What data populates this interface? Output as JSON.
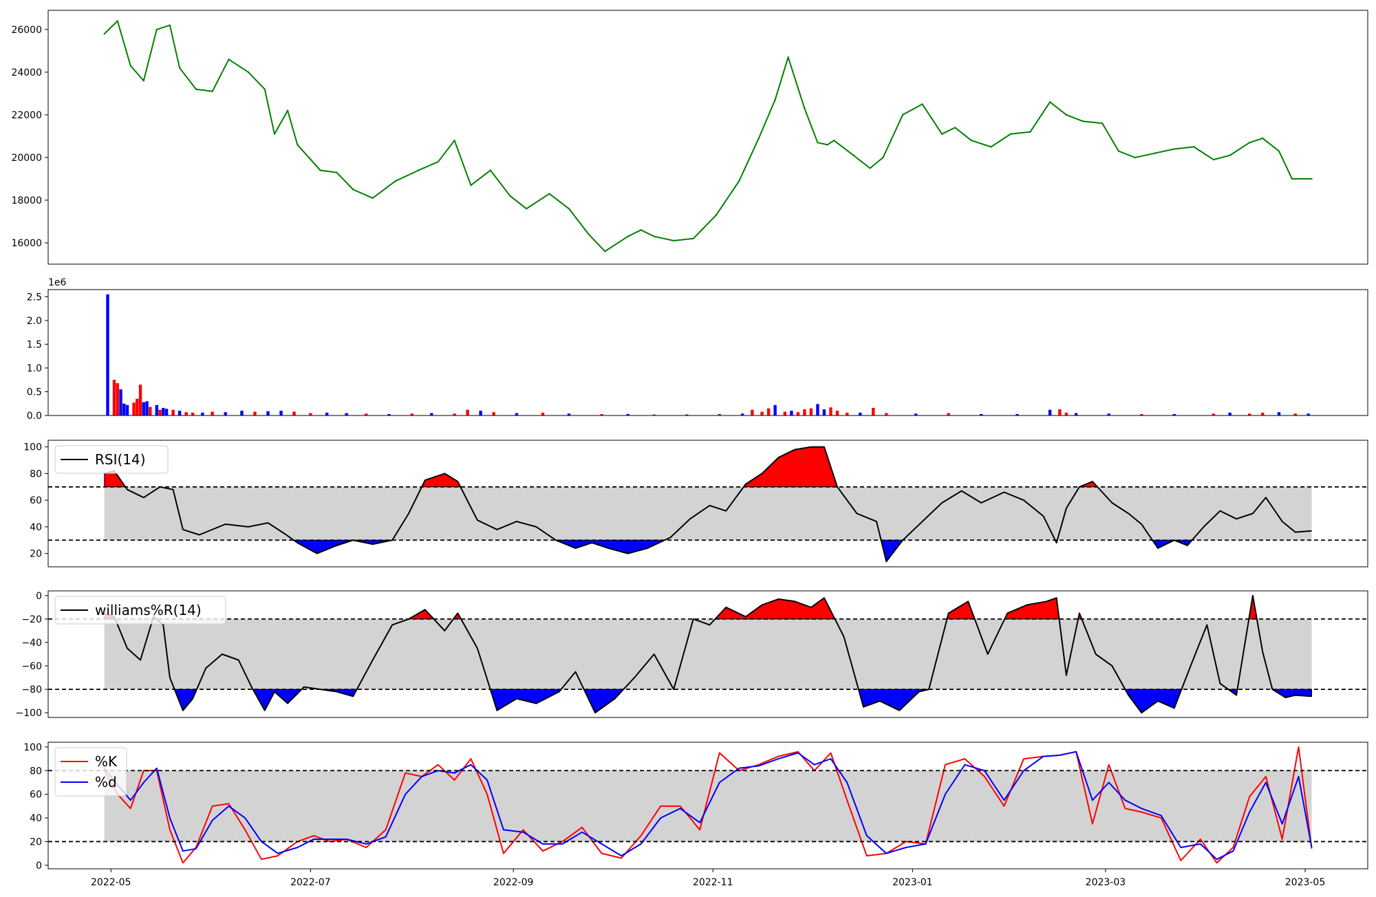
{
  "colors": {
    "price_line": "#008000",
    "volume_up": "#ff0000",
    "volume_down": "#0000ff",
    "overbought_fill": "#ff0000",
    "oversold_fill": "#0000ff",
    "band_fill": "#d3d3d3",
    "indicator_line": "#000000",
    "k_line": "#ff0000",
    "d_line": "#0000ff"
  },
  "chart_data": [
    {
      "type": "line",
      "name": "price",
      "ylim": [
        15000,
        26900
      ],
      "yticks": [
        16000,
        18000,
        20000,
        22000,
        24000,
        26000
      ],
      "x": [
        "2022-04-29",
        "2022-05-03",
        "2022-05-07",
        "2022-05-11",
        "2022-05-15",
        "2022-05-19",
        "2022-05-22",
        "2022-05-27",
        "2022-06-01",
        "2022-06-06",
        "2022-06-12",
        "2022-06-17",
        "2022-06-20",
        "2022-06-24",
        "2022-06-27",
        "2022-07-04",
        "2022-07-09",
        "2022-07-14",
        "2022-07-20",
        "2022-07-27",
        "2022-08-03",
        "2022-08-09",
        "2022-08-14",
        "2022-08-19",
        "2022-08-25",
        "2022-08-31",
        "2022-09-05",
        "2022-09-12",
        "2022-09-18",
        "2022-09-24",
        "2022-09-29",
        "2022-10-06",
        "2022-10-10",
        "2022-10-14",
        "2022-10-20",
        "2022-10-26",
        "2022-11-02",
        "2022-11-09",
        "2022-11-15",
        "2022-11-20",
        "2022-11-24",
        "2022-11-29",
        "2022-12-03",
        "2022-12-06",
        "2022-12-08",
        "2022-12-14",
        "2022-12-19",
        "2022-12-23",
        "2022-12-29",
        "2023-01-04",
        "2023-01-10",
        "2023-01-14",
        "2023-01-19",
        "2023-01-25",
        "2023-01-31",
        "2023-02-06",
        "2023-02-12",
        "2023-02-17",
        "2023-02-22",
        "2023-02-28",
        "2023-03-05",
        "2023-03-10",
        "2023-03-16",
        "2023-03-22",
        "2023-03-28",
        "2023-04-03",
        "2023-04-08",
        "2023-04-14",
        "2023-04-18",
        "2023-04-23",
        "2023-04-27",
        "2023-05-03"
      ],
      "values": [
        25800,
        26400,
        24300,
        23600,
        26000,
        26200,
        24200,
        23200,
        23100,
        24600,
        24000,
        23200,
        21100,
        22200,
        20600,
        19400,
        19300,
        18500,
        18100,
        18900,
        19400,
        19800,
        20800,
        18700,
        19400,
        18200,
        17600,
        18300,
        17600,
        16400,
        15600,
        16300,
        16600,
        16300,
        16100,
        16200,
        17300,
        18900,
        20900,
        22700,
        24700,
        22300,
        20700,
        20600,
        20800,
        20100,
        19500,
        20000,
        22000,
        22500,
        21100,
        21400,
        20800,
        20500,
        21100,
        21200,
        22600,
        22000,
        21700,
        21600,
        20300,
        20000,
        20200,
        20400,
        20500,
        19900,
        20100,
        20700,
        20900,
        20300,
        19000,
        19000
      ]
    },
    {
      "type": "bar",
      "name": "volume",
      "exponent_label": "1e6",
      "ylim": [
        0,
        2.65
      ],
      "yticks": [
        0.0,
        0.5,
        1.0,
        1.5,
        2.0,
        2.5
      ],
      "x": [
        "2022-04-30",
        "2022-05-02",
        "2022-05-03",
        "2022-05-04",
        "2022-05-05",
        "2022-05-06",
        "2022-05-08",
        "2022-05-09",
        "2022-05-10",
        "2022-05-11",
        "2022-05-12",
        "2022-05-13",
        "2022-05-15",
        "2022-05-16",
        "2022-05-17",
        "2022-05-18",
        "2022-05-20",
        "2022-05-22",
        "2022-05-24",
        "2022-05-26",
        "2022-05-29",
        "2022-06-01",
        "2022-06-05",
        "2022-06-10",
        "2022-06-14",
        "2022-06-18",
        "2022-06-22",
        "2022-06-26",
        "2022-07-01",
        "2022-07-06",
        "2022-07-12",
        "2022-07-18",
        "2022-07-25",
        "2022-08-01",
        "2022-08-07",
        "2022-08-14",
        "2022-08-18",
        "2022-08-22",
        "2022-08-26",
        "2022-09-02",
        "2022-09-10",
        "2022-09-18",
        "2022-09-28",
        "2022-10-06",
        "2022-10-14",
        "2022-10-24",
        "2022-11-03",
        "2022-11-10",
        "2022-11-13",
        "2022-11-16",
        "2022-11-18",
        "2022-11-20",
        "2022-11-23",
        "2022-11-25",
        "2022-11-27",
        "2022-11-29",
        "2022-12-01",
        "2022-12-03",
        "2022-12-05",
        "2022-12-07",
        "2022-12-09",
        "2022-12-12",
        "2022-12-16",
        "2022-12-20",
        "2022-12-24",
        "2023-01-02",
        "2023-01-12",
        "2023-01-22",
        "2023-02-02",
        "2023-02-12",
        "2023-02-15",
        "2023-02-17",
        "2023-02-20",
        "2023-03-02",
        "2023-03-12",
        "2023-03-22",
        "2023-04-03",
        "2023-04-08",
        "2023-04-14",
        "2023-04-18",
        "2023-04-23",
        "2023-04-28",
        "2023-05-02"
      ],
      "values": [
        2.55,
        0.75,
        0.68,
        0.55,
        0.25,
        0.22,
        0.27,
        0.35,
        0.65,
        0.28,
        0.3,
        0.18,
        0.22,
        0.12,
        0.16,
        0.14,
        0.12,
        0.1,
        0.07,
        0.06,
        0.06,
        0.08,
        0.07,
        0.1,
        0.08,
        0.09,
        0.1,
        0.08,
        0.05,
        0.06,
        0.05,
        0.04,
        0.03,
        0.04,
        0.05,
        0.04,
        0.12,
        0.1,
        0.07,
        0.05,
        0.06,
        0.04,
        0.03,
        0.03,
        0.02,
        0.02,
        0.03,
        0.04,
        0.12,
        0.08,
        0.15,
        0.22,
        0.08,
        0.1,
        0.07,
        0.13,
        0.15,
        0.24,
        0.13,
        0.17,
        0.1,
        0.06,
        0.06,
        0.16,
        0.05,
        0.04,
        0.05,
        0.03,
        0.03,
        0.12,
        0.13,
        0.06,
        0.05,
        0.04,
        0.03,
        0.03,
        0.04,
        0.06,
        0.04,
        0.06,
        0.07,
        0.04,
        0.04
      ],
      "direction": [
        "down",
        "up",
        "up",
        "down",
        "down",
        "down",
        "up",
        "up",
        "up",
        "down",
        "down",
        "up",
        "down",
        "up",
        "down",
        "down",
        "up",
        "down",
        "up",
        "up",
        "down",
        "up",
        "down",
        "down",
        "up",
        "down",
        "down",
        "up",
        "up",
        "down",
        "down",
        "up",
        "down",
        "up",
        "down",
        "up",
        "up",
        "down",
        "up",
        "down",
        "up",
        "down",
        "up",
        "down",
        "up",
        "down",
        "up",
        "down",
        "up",
        "up",
        "up",
        "down",
        "up",
        "down",
        "up",
        "up",
        "up",
        "down",
        "down",
        "up",
        "up",
        "up",
        "down",
        "up",
        "up",
        "down",
        "up",
        "down",
        "down",
        "down",
        "up",
        "up",
        "down",
        "down",
        "up",
        "down",
        "up",
        "down",
        "up",
        "up",
        "down",
        "up",
        "down"
      ]
    },
    {
      "type": "line",
      "name": "rsi",
      "legend": [
        "RSI(14)"
      ],
      "ylim": [
        10,
        105
      ],
      "yticks": [
        20,
        40,
        60,
        80,
        100
      ],
      "thresholds": [
        70,
        30
      ],
      "x": [
        "2022-04-29",
        "2022-05-02",
        "2022-05-06",
        "2022-05-11",
        "2022-05-16",
        "2022-05-20",
        "2022-05-23",
        "2022-05-28",
        "2022-06-05",
        "2022-06-12",
        "2022-06-18",
        "2022-06-23",
        "2022-06-27",
        "2022-07-03",
        "2022-07-09",
        "2022-07-14",
        "2022-07-20",
        "2022-07-26",
        "2022-07-31",
        "2022-08-05",
        "2022-08-11",
        "2022-08-15",
        "2022-08-21",
        "2022-08-27",
        "2022-09-02",
        "2022-09-08",
        "2022-09-14",
        "2022-09-20",
        "2022-09-25",
        "2022-09-30",
        "2022-10-06",
        "2022-10-12",
        "2022-10-19",
        "2022-10-25",
        "2022-10-31",
        "2022-11-05",
        "2022-11-11",
        "2022-11-16",
        "2022-11-21",
        "2022-11-26",
        "2022-12-01",
        "2022-12-05",
        "2022-12-09",
        "2022-12-15",
        "2022-12-21",
        "2022-12-24",
        "2022-12-29",
        "2023-01-04",
        "2023-01-10",
        "2023-01-16",
        "2023-01-22",
        "2023-01-29",
        "2023-02-04",
        "2023-02-10",
        "2023-02-14",
        "2023-02-17",
        "2023-02-21",
        "2023-02-25",
        "2023-03-03",
        "2023-03-08",
        "2023-03-12",
        "2023-03-17",
        "2023-03-22",
        "2023-03-26",
        "2023-03-31",
        "2023-04-05",
        "2023-04-10",
        "2023-04-15",
        "2023-04-19",
        "2023-04-24",
        "2023-04-28",
        "2023-05-03"
      ],
      "values": [
        80,
        82,
        68,
        62,
        70,
        68,
        38,
        34,
        42,
        40,
        43,
        35,
        28,
        20,
        26,
        30,
        27,
        30,
        50,
        75,
        80,
        74,
        45,
        38,
        44,
        40,
        30,
        24,
        28,
        24,
        20,
        24,
        32,
        46,
        56,
        52,
        72,
        80,
        92,
        98,
        100,
        100,
        70,
        50,
        44,
        14,
        30,
        44,
        58,
        67,
        58,
        66,
        60,
        48,
        28,
        54,
        70,
        74,
        58,
        50,
        42,
        24,
        30,
        26,
        40,
        52,
        46,
        50,
        62,
        44,
        36,
        37
      ]
    },
    {
      "type": "line",
      "name": "williams_r",
      "legend": [
        "williams%R(14)"
      ],
      "ylim": [
        -104,
        4
      ],
      "yticks": [
        -100,
        -80,
        -60,
        -40,
        -20,
        0
      ],
      "thresholds": [
        -20,
        -80
      ],
      "x": [
        "2022-04-29",
        "2022-05-02",
        "2022-05-06",
        "2022-05-10",
        "2022-05-14",
        "2022-05-17",
        "2022-05-19",
        "2022-05-23",
        "2022-05-26",
        "2022-05-30",
        "2022-06-04",
        "2022-06-09",
        "2022-06-13",
        "2022-06-17",
        "2022-06-20",
        "2022-06-24",
        "2022-06-29",
        "2022-07-04",
        "2022-07-09",
        "2022-07-14",
        "2022-07-20",
        "2022-07-26",
        "2022-07-31",
        "2022-08-05",
        "2022-08-11",
        "2022-08-15",
        "2022-08-21",
        "2022-08-27",
        "2022-09-02",
        "2022-09-08",
        "2022-09-15",
        "2022-09-20",
        "2022-09-26",
        "2022-10-02",
        "2022-10-08",
        "2022-10-14",
        "2022-10-20",
        "2022-10-26",
        "2022-10-31",
        "2022-11-05",
        "2022-11-11",
        "2022-11-16",
        "2022-11-21",
        "2022-11-26",
        "2022-12-01",
        "2022-12-05",
        "2022-12-11",
        "2022-12-17",
        "2022-12-22",
        "2022-12-28",
        "2023-01-03",
        "2023-01-06",
        "2023-01-12",
        "2023-01-18",
        "2023-01-24",
        "2023-01-30",
        "2023-02-05",
        "2023-02-11",
        "2023-02-14",
        "2023-02-17",
        "2023-02-21",
        "2023-02-26",
        "2023-03-03",
        "2023-03-08",
        "2023-03-12",
        "2023-03-17",
        "2023-03-22",
        "2023-03-27",
        "2023-04-01",
        "2023-04-05",
        "2023-04-10",
        "2023-04-15",
        "2023-04-18",
        "2023-04-21",
        "2023-04-25",
        "2023-04-28",
        "2023-05-03"
      ],
      "values": [
        -15,
        -18,
        -45,
        -55,
        -18,
        -25,
        -70,
        -98,
        -88,
        -62,
        -50,
        -55,
        -78,
        -98,
        -82,
        -92,
        -78,
        -80,
        -82,
        -86,
        -55,
        -25,
        -20,
        -12,
        -30,
        -15,
        -45,
        -98,
        -88,
        -92,
        -82,
        -65,
        -100,
        -88,
        -70,
        -50,
        -80,
        -20,
        -25,
        -10,
        -18,
        -8,
        -3,
        -5,
        -10,
        -2,
        -35,
        -95,
        -90,
        -98,
        -82,
        -80,
        -15,
        -5,
        -50,
        -15,
        -8,
        -5,
        -2,
        -68,
        -15,
        -50,
        -60,
        -85,
        -100,
        -90,
        -96,
        -60,
        -25,
        -75,
        -85,
        0,
        -48,
        -80,
        -87,
        -85,
        -86
      ]
    },
    {
      "type": "line",
      "name": "stochastic",
      "legend": [
        "%K",
        "%d"
      ],
      "ylim": [
        -3,
        104
      ],
      "yticks": [
        0,
        20,
        40,
        60,
        80,
        100
      ],
      "thresholds": [
        80,
        20
      ],
      "x": [
        "2022-04-29",
        "2022-05-03",
        "2022-05-07",
        "2022-05-11",
        "2022-05-15",
        "2022-05-19",
        "2022-05-23",
        "2022-05-27",
        "2022-06-01",
        "2022-06-06",
        "2022-06-11",
        "2022-06-16",
        "2022-06-21",
        "2022-06-27",
        "2022-07-02",
        "2022-07-07",
        "2022-07-12",
        "2022-07-18",
        "2022-07-24",
        "2022-07-30",
        "2022-08-04",
        "2022-08-09",
        "2022-08-14",
        "2022-08-19",
        "2022-08-24",
        "2022-08-29",
        "2022-09-04",
        "2022-09-10",
        "2022-09-16",
        "2022-09-22",
        "2022-09-28",
        "2022-10-04",
        "2022-10-10",
        "2022-10-16",
        "2022-10-22",
        "2022-10-28",
        "2022-11-03",
        "2022-11-09",
        "2022-11-15",
        "2022-11-21",
        "2022-11-27",
        "2022-12-02",
        "2022-12-07",
        "2022-12-12",
        "2022-12-18",
        "2022-12-24",
        "2022-12-30",
        "2023-01-05",
        "2023-01-11",
        "2023-01-17",
        "2023-01-23",
        "2023-01-29",
        "2023-02-04",
        "2023-02-10",
        "2023-02-15",
        "2023-02-20",
        "2023-02-25",
        "2023-03-02",
        "2023-03-07",
        "2023-03-12",
        "2023-03-18",
        "2023-03-24",
        "2023-03-30",
        "2023-04-04",
        "2023-04-09",
        "2023-04-14",
        "2023-04-19",
        "2023-04-24",
        "2023-04-29",
        "2023-05-03"
      ],
      "k_values": [
        80,
        60,
        48,
        80,
        80,
        30,
        2,
        15,
        50,
        52,
        30,
        5,
        8,
        20,
        25,
        20,
        22,
        15,
        30,
        78,
        75,
        85,
        72,
        90,
        60,
        10,
        30,
        12,
        20,
        32,
        10,
        6,
        25,
        50,
        50,
        30,
        95,
        80,
        85,
        92,
        96,
        80,
        95,
        55,
        8,
        10,
        20,
        18,
        85,
        90,
        75,
        50,
        90,
        92,
        93,
        96,
        35,
        85,
        48,
        45,
        40,
        4,
        22,
        2,
        15,
        58,
        75,
        22,
        100,
        14
      ],
      "d_values": [
        82,
        68,
        55,
        70,
        82,
        40,
        12,
        14,
        38,
        50,
        40,
        20,
        10,
        15,
        22,
        22,
        22,
        18,
        24,
        60,
        75,
        80,
        78,
        85,
        72,
        30,
        28,
        18,
        18,
        28,
        18,
        8,
        18,
        40,
        48,
        36,
        70,
        82,
        84,
        90,
        95,
        85,
        90,
        70,
        25,
        10,
        15,
        18,
        60,
        85,
        80,
        55,
        80,
        92,
        93,
        96,
        55,
        70,
        55,
        48,
        42,
        15,
        18,
        5,
        12,
        45,
        70,
        35,
        75,
        15
      ]
    }
  ],
  "xaxis": {
    "ticks": [
      "2022-05",
      "2022-07",
      "2022-09",
      "2022-11",
      "2023-01",
      "2023-03",
      "2023-05"
    ]
  }
}
